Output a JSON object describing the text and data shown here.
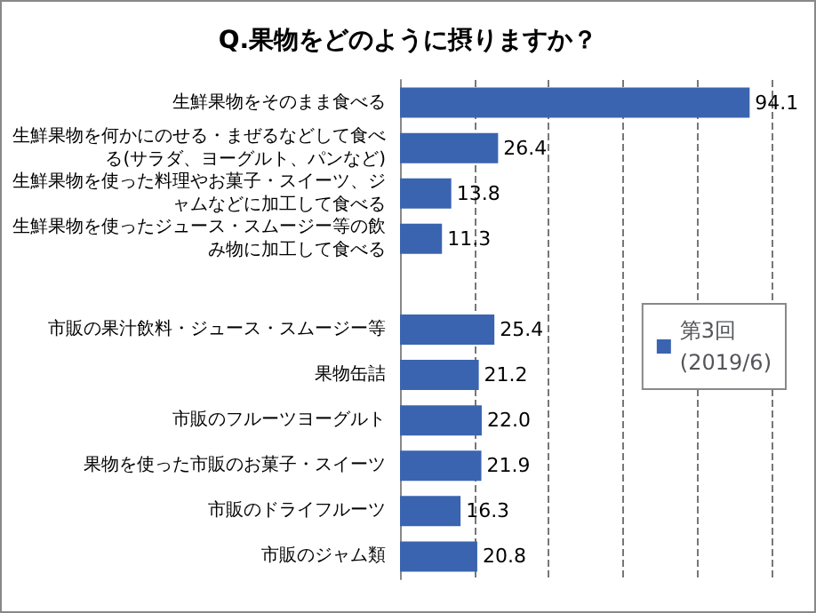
{
  "chart_data": {
    "type": "bar",
    "orientation": "horizontal",
    "title": "Q.果物をどのように摂りますか？",
    "categories": [
      "生鮮果物をそのまま食べる",
      "生鮮果物を何かにのせる・まぜるなどして食べる(サラダ、ヨーグルト、パンなど)",
      "生鮮果物を使った料理やお菓子・スイーツ、ジャムなどに加工して食べる",
      "生鮮果物を使ったジュース・スムージー等の飲み物に加工して食べる",
      null,
      "市販の果汁飲料・ジュース・スムージー等",
      "果物缶詰",
      "市販のフルーツヨーグルト",
      "果物を使った市販のお菓子・スイーツ",
      "市販のドライフルーツ",
      "市販のジャム類"
    ],
    "series": [
      {
        "name": "第3回\n(2019/6)",
        "color": "#3a64b0",
        "values": [
          94.1,
          26.4,
          13.8,
          11.3,
          null,
          25.4,
          21.2,
          22.0,
          21.9,
          16.3,
          20.8
        ],
        "value_labels": [
          "94.1",
          "26.4",
          "13.8",
          "11.3",
          null,
          "25.4",
          "21.2",
          "22.0",
          "21.9",
          "16.3",
          "20.8"
        ]
      }
    ],
    "xlim": [
      0,
      100
    ],
    "xticks": [
      {
        "value": 0,
        "label": null
      },
      {
        "value": 20,
        "label": null
      },
      {
        "value": 40,
        "label": null
      },
      {
        "value": 60,
        "label": null
      },
      {
        "value": 80,
        "label": null
      },
      {
        "value": 100,
        "label": null
      }
    ],
    "grid": "x",
    "legend": "right"
  }
}
